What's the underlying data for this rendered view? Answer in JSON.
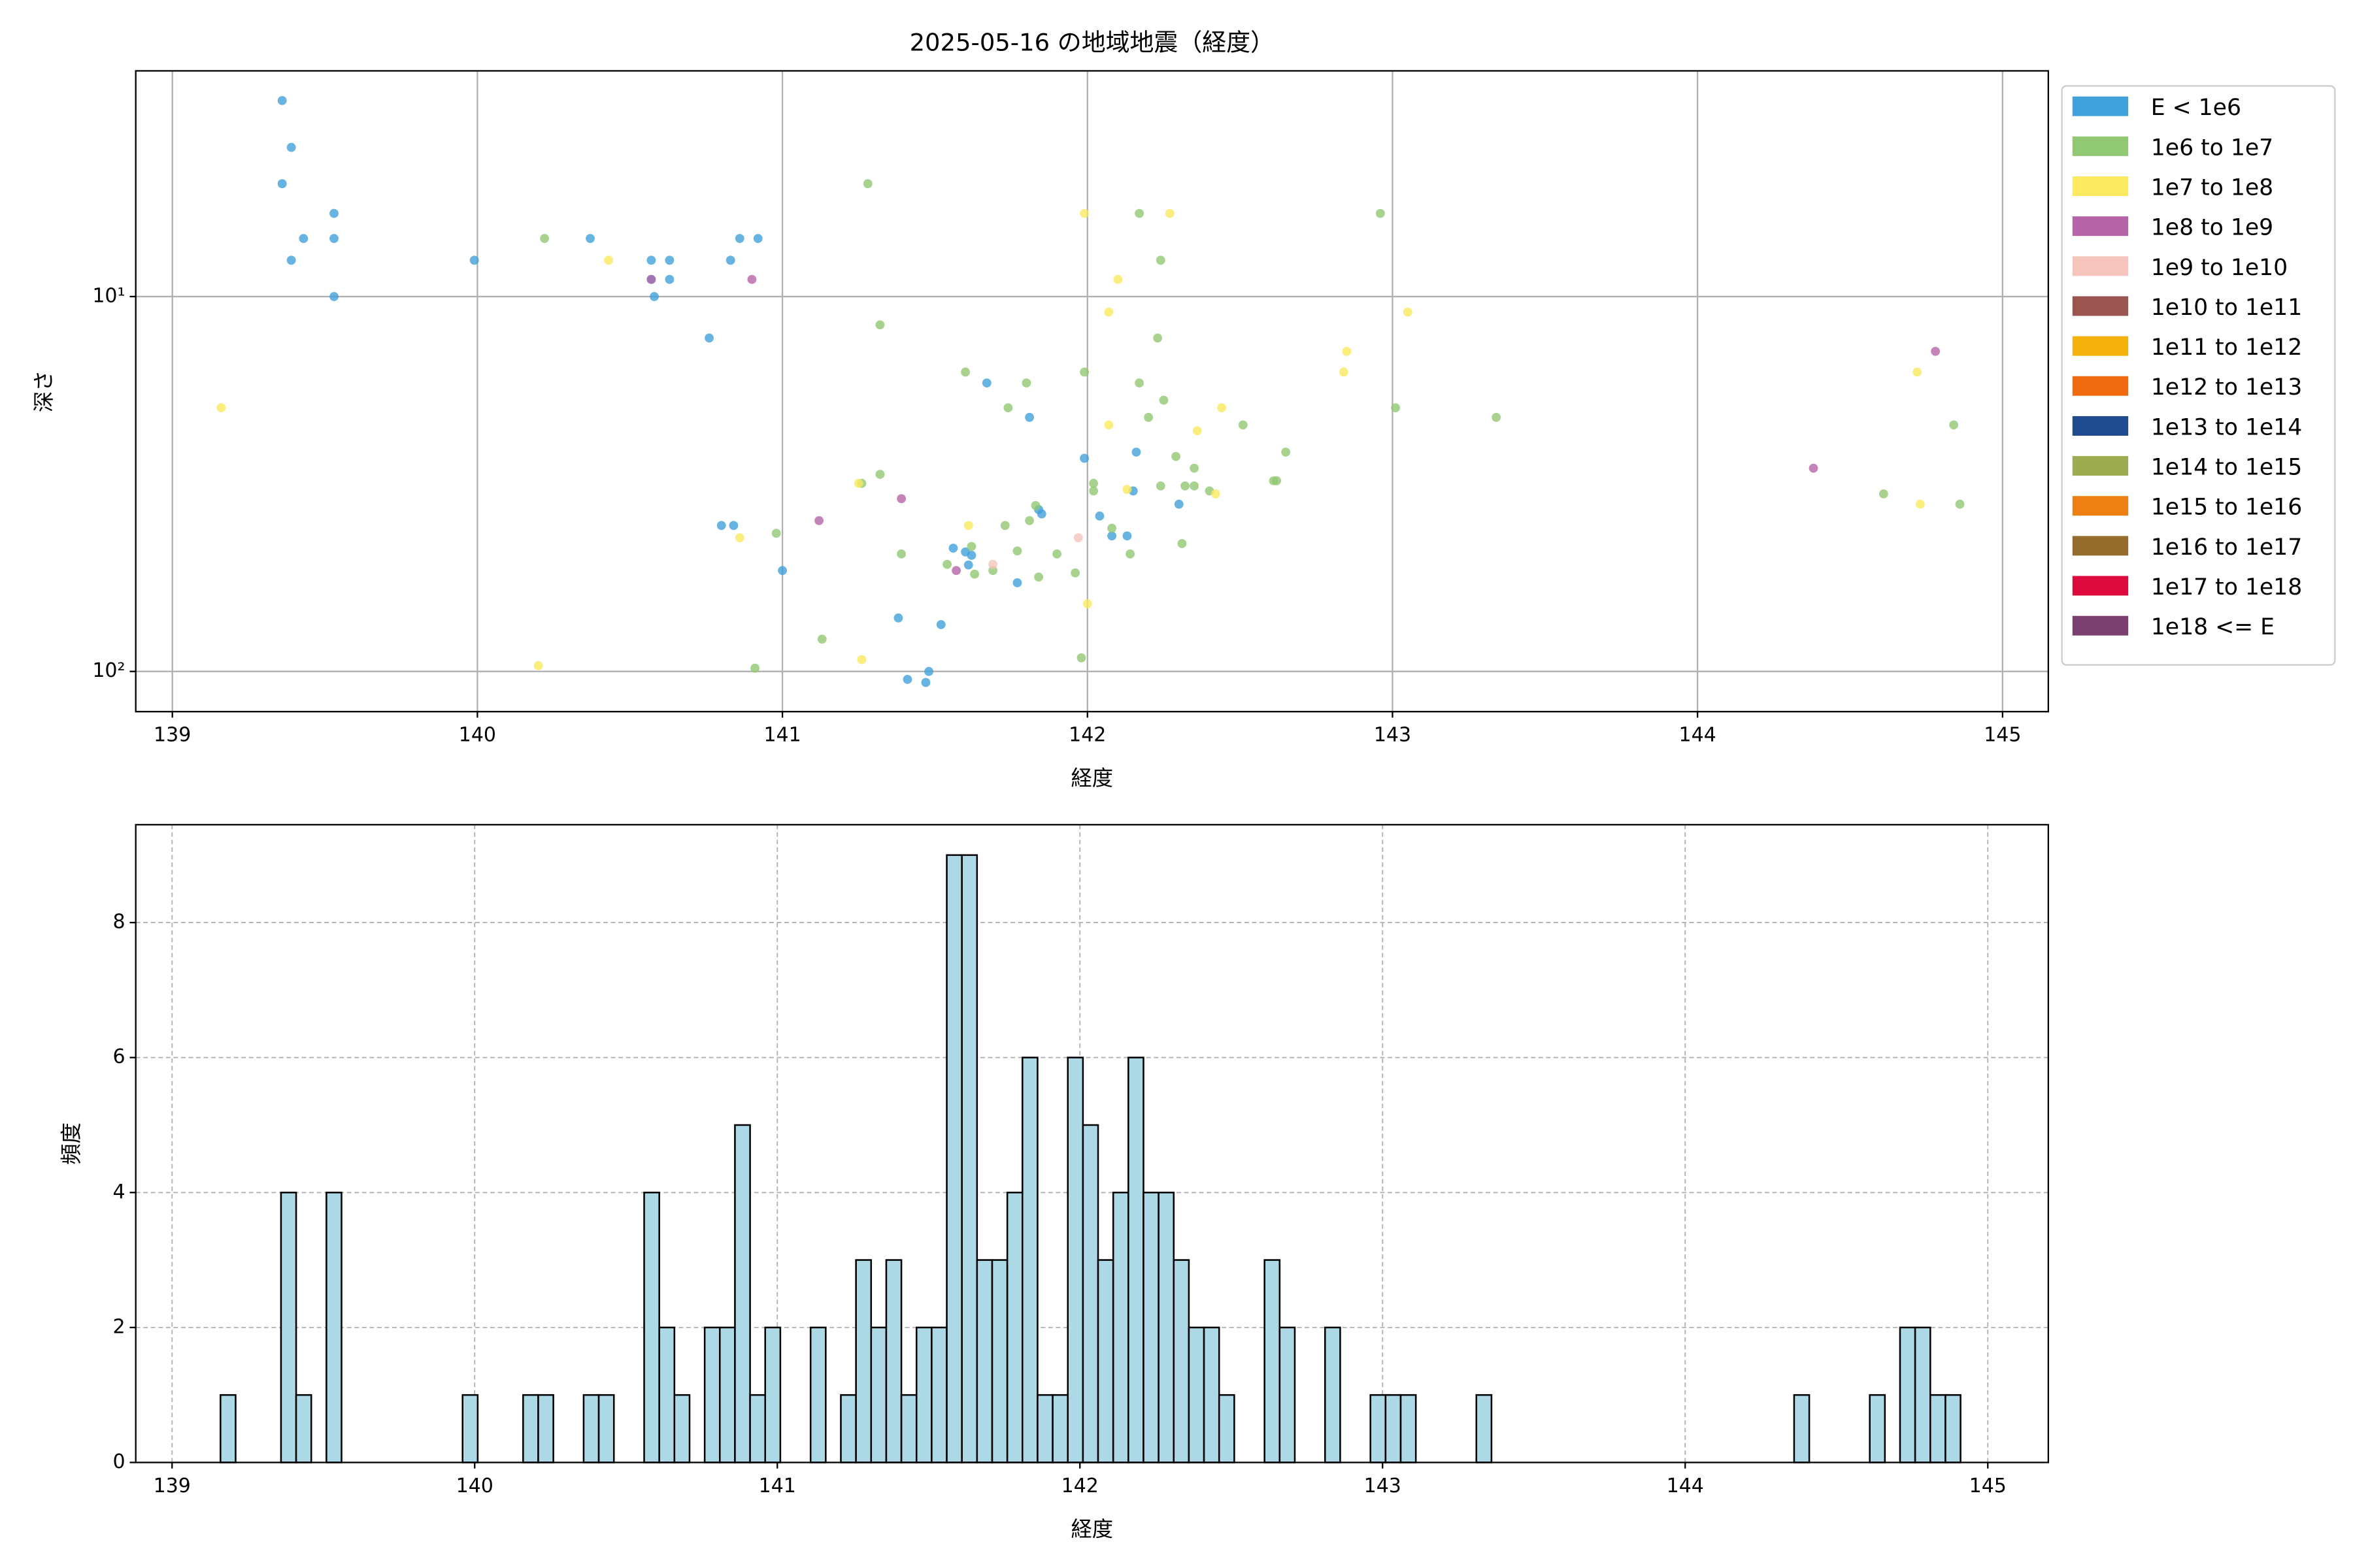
{
  "chart_data": [
    {
      "type": "scatter",
      "title": "2025-05-16 の地域地震（経度）",
      "xlabel": "経度",
      "ylabel": "深さ",
      "xlim": [
        138.88,
        145.15
      ],
      "xticks": [
        139,
        140,
        141,
        142,
        143,
        144,
        145
      ],
      "yscale": "log",
      "ylim": [
        128,
        2.5
      ],
      "yticks": [
        {
          "value": 10,
          "label": "10¹"
        },
        {
          "value": 100,
          "label": "10²"
        }
      ],
      "grid": true,
      "legend": "right",
      "series": [
        {
          "name": "E < 1e6",
          "color": "#41a1db",
          "x": [
            139.36,
            139.39,
            139.36,
            139.53,
            139.53,
            139.43,
            139.39,
            139.53,
            139.99,
            140.37,
            140.57,
            140.63,
            140.57,
            140.63,
            140.58,
            140.83,
            140.86,
            140.92,
            140.76,
            140.8,
            140.84,
            141.0,
            141.38,
            141.52,
            141.41,
            141.47,
            141.48,
            141.56,
            141.6,
            141.62,
            141.61,
            141.67,
            141.81,
            141.77,
            141.85,
            141.84,
            141.99,
            142.04,
            142.08,
            142.13,
            142.16,
            142.15,
            142.3
          ],
          "values": [
            3,
            4,
            5,
            6,
            7,
            7,
            8,
            10,
            8,
            7,
            8,
            8,
            9,
            9,
            10,
            8,
            7,
            7,
            12.9,
            40.8,
            40.8,
            53.8,
            72,
            75,
            105,
            107,
            100,
            46.9,
            48,
            49,
            52,
            17,
            21,
            58,
            38,
            37,
            27,
            38.5,
            43.5,
            43.5,
            26,
            33,
            35.8
          ]
        },
        {
          "name": "1e6 to 1e7",
          "color": "#91c873",
          "x": [
            140.22,
            141.28,
            141.32,
            140.98,
            140.91,
            141.13,
            141.32,
            141.26,
            141.39,
            141.6,
            141.74,
            141.8,
            141.99,
            142.17,
            142.24,
            142.23,
            142.17,
            142.2,
            142.25,
            142.29,
            142.35,
            142.32,
            142.35,
            142.24,
            142.4,
            142.51,
            142.65,
            142.62,
            142.61,
            142.96,
            143.01,
            143.34,
            144.61,
            144.84,
            144.86,
            142.02,
            142.02,
            142.08,
            142.14,
            142.31,
            141.96,
            141.98,
            141.9,
            141.84,
            141.81,
            141.73,
            141.77,
            141.69,
            141.62,
            141.54,
            141.63,
            141.83
          ],
          "values": [
            7,
            5,
            11.9,
            42.8,
            98,
            82,
            29.8,
            31.5,
            48.6,
            15.9,
            19.8,
            17,
            15.9,
            6,
            8,
            12.9,
            17,
            21,
            18.9,
            26.7,
            28.7,
            32,
            32,
            32,
            33,
            22,
            26,
            31,
            31,
            6,
            19.8,
            21,
            33.6,
            22,
            35.8,
            31.5,
            33,
            41.5,
            48.6,
            45.6,
            54.6,
            92,
            48.6,
            56,
            39.6,
            40.8,
            47.7,
            53.8,
            46.4,
            51.8,
            55,
            36.1
          ]
        },
        {
          "name": "1e7 to 1e8",
          "color": "#fbe95f",
          "x": [
            139.16,
            140.2,
            140.43,
            140.86,
            141.25,
            141.26,
            141.99,
            142.27,
            142.1,
            142.07,
            142.85,
            142.84,
            143.05,
            142.07,
            142.44,
            142.36,
            142.42,
            142.13,
            141.61,
            142.0,
            144.72,
            144.73
          ],
          "values": [
            19.8,
            96.5,
            8,
            44,
            31.5,
            93,
            6,
            6,
            9,
            11,
            14,
            15.9,
            11,
            22,
            19.8,
            22.8,
            33.6,
            32.7,
            40.8,
            66,
            15.9,
            35.8
          ]
        },
        {
          "name": "1e8 to 1e9",
          "color": "#b565a7",
          "x": [
            140.57,
            140.9,
            141.12,
            141.39,
            141.57,
            144.78,
            144.38
          ],
          "values": [
            9,
            9,
            39.6,
            34.6,
            53.8,
            14,
            28.7
          ]
        },
        {
          "name": "1e9 to 1e10",
          "color": "#f5c4bc",
          "x": [
            141.97,
            141.69
          ],
          "values": [
            44,
            51.8
          ]
        },
        {
          "name": "1e10 to 1e11",
          "color": "#9b5550",
          "x": [],
          "values": []
        },
        {
          "name": "1e11 to 1e12",
          "color": "#f5b10b",
          "x": [],
          "values": []
        },
        {
          "name": "1e12 to 1e13",
          "color": "#ef6a0e",
          "x": [],
          "values": []
        },
        {
          "name": "1e13 to 1e14",
          "color": "#1f4a8f",
          "x": [],
          "values": []
        },
        {
          "name": "1e14 to 1e15",
          "color": "#9dac50",
          "x": [],
          "values": []
        },
        {
          "name": "1e15 to 1e16",
          "color": "#ee7f12",
          "x": [],
          "values": []
        },
        {
          "name": "1e16 to 1e17",
          "color": "#946d2d",
          "x": [],
          "values": []
        },
        {
          "name": "1e17 to 1e18",
          "color": "#dc0a3d",
          "x": [],
          "values": []
        },
        {
          "name": "1e18 <= E",
          "color": "#7a3f6e",
          "x": [],
          "values": []
        }
      ]
    },
    {
      "type": "histogram",
      "xlabel": "経度",
      "ylabel": "頻度",
      "color": "#add8e6",
      "edgecolor": "#000000",
      "xlim": [
        138.88,
        145.2
      ],
      "xticks": [
        139,
        140,
        141,
        142,
        143,
        144,
        145
      ],
      "ylim": [
        0,
        9.45
      ],
      "yticks": [
        0,
        2,
        4,
        6,
        8
      ],
      "grid": true,
      "grid_style": "dashed",
      "bins": [
        139.16,
        139.21,
        139.26,
        139.31,
        139.36,
        139.41,
        139.46,
        139.51,
        139.56,
        139.61,
        139.66,
        139.71,
        139.76,
        139.81,
        139.86,
        139.91,
        139.96,
        140.01,
        140.06,
        140.11,
        140.16,
        140.21,
        140.26,
        140.31,
        140.36,
        140.41,
        140.46,
        140.51,
        140.56,
        140.61,
        140.66,
        140.71,
        140.76,
        140.81,
        140.86,
        140.91,
        140.96,
        141.01,
        141.06,
        141.11,
        141.16,
        141.21,
        141.26,
        141.31,
        141.36,
        141.41,
        141.46,
        141.51,
        141.56,
        141.61,
        141.66,
        141.71,
        141.76,
        141.81,
        141.86,
        141.91,
        141.96,
        142.01,
        142.06,
        142.11,
        142.16,
        142.21,
        142.26,
        142.31,
        142.36,
        142.41,
        142.46,
        142.51,
        142.56,
        142.61,
        142.66,
        142.71,
        142.76,
        142.81,
        142.86,
        142.91,
        142.96,
        143.01,
        143.06,
        143.11,
        143.16,
        143.21,
        143.26,
        143.31,
        143.36,
        143.41,
        143.46,
        143.51,
        143.56,
        143.61,
        143.66,
        143.71,
        143.76,
        143.81,
        143.86,
        143.91,
        143.96,
        144.01,
        144.06,
        144.11,
        144.16,
        144.21,
        144.26,
        144.31,
        144.36,
        144.41,
        144.46,
        144.51,
        144.56,
        144.61,
        144.66,
        144.71,
        144.76,
        144.81,
        144.86,
        144.91
      ],
      "values": [
        1,
        0,
        0,
        0,
        4,
        1,
        0,
        4,
        0,
        0,
        0,
        0,
        0,
        0,
        0,
        0,
        1,
        0,
        0,
        0,
        1,
        1,
        0,
        0,
        1,
        1,
        0,
        0,
        4,
        2,
        1,
        0,
        2,
        2,
        5,
        1,
        2,
        0,
        0,
        2,
        0,
        1,
        3,
        2,
        3,
        1,
        2,
        2,
        9,
        9,
        3,
        3,
        4,
        6,
        1,
        1,
        6,
        5,
        3,
        4,
        6,
        4,
        4,
        3,
        2,
        2,
        1,
        0,
        0,
        3,
        2,
        0,
        0,
        2,
        0,
        0,
        1,
        1,
        1,
        0,
        0,
        0,
        0,
        1,
        0,
        0,
        0,
        0,
        0,
        0,
        0,
        0,
        0,
        0,
        0,
        0,
        0,
        0,
        0,
        0,
        0,
        0,
        0,
        0,
        1,
        0,
        0,
        0,
        0,
        1,
        0,
        2,
        2,
        1,
        1
      ]
    }
  ]
}
